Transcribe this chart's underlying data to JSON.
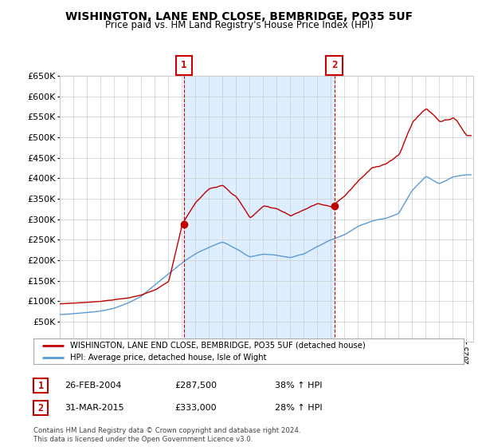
{
  "title": "WISHINGTON, LANE END CLOSE, BEMBRIDGE, PO35 5UF",
  "subtitle": "Price paid vs. HM Land Registry's House Price Index (HPI)",
  "legend_line1": "WISHINGTON, LANE END CLOSE, BEMBRIDGE, PO35 5UF (detached house)",
  "legend_line2": "HPI: Average price, detached house, Isle of Wight",
  "annotation1_date": "26-FEB-2004",
  "annotation1_price": "£287,500",
  "annotation1_hpi": "38% ↑ HPI",
  "annotation2_date": "31-MAR-2015",
  "annotation2_price": "£333,000",
  "annotation2_hpi": "28% ↑ HPI",
  "footnote": "Contains HM Land Registry data © Crown copyright and database right 2024.\nThis data is licensed under the Open Government Licence v3.0.",
  "sale1_year": 2004.15,
  "sale1_price": 287500,
  "sale2_year": 2015.25,
  "sale2_price": 333000,
  "hpi_color": "#5b9bd5",
  "price_color": "#c00000",
  "shade_color": "#ddeeff",
  "dashed_line_color": "#cc0000",
  "background_color": "#ffffff",
  "grid_color": "#cccccc",
  "ylim_min": 0,
  "ylim_max": 650000,
  "xlim_min": 1995.0,
  "xlim_max": 2025.5
}
